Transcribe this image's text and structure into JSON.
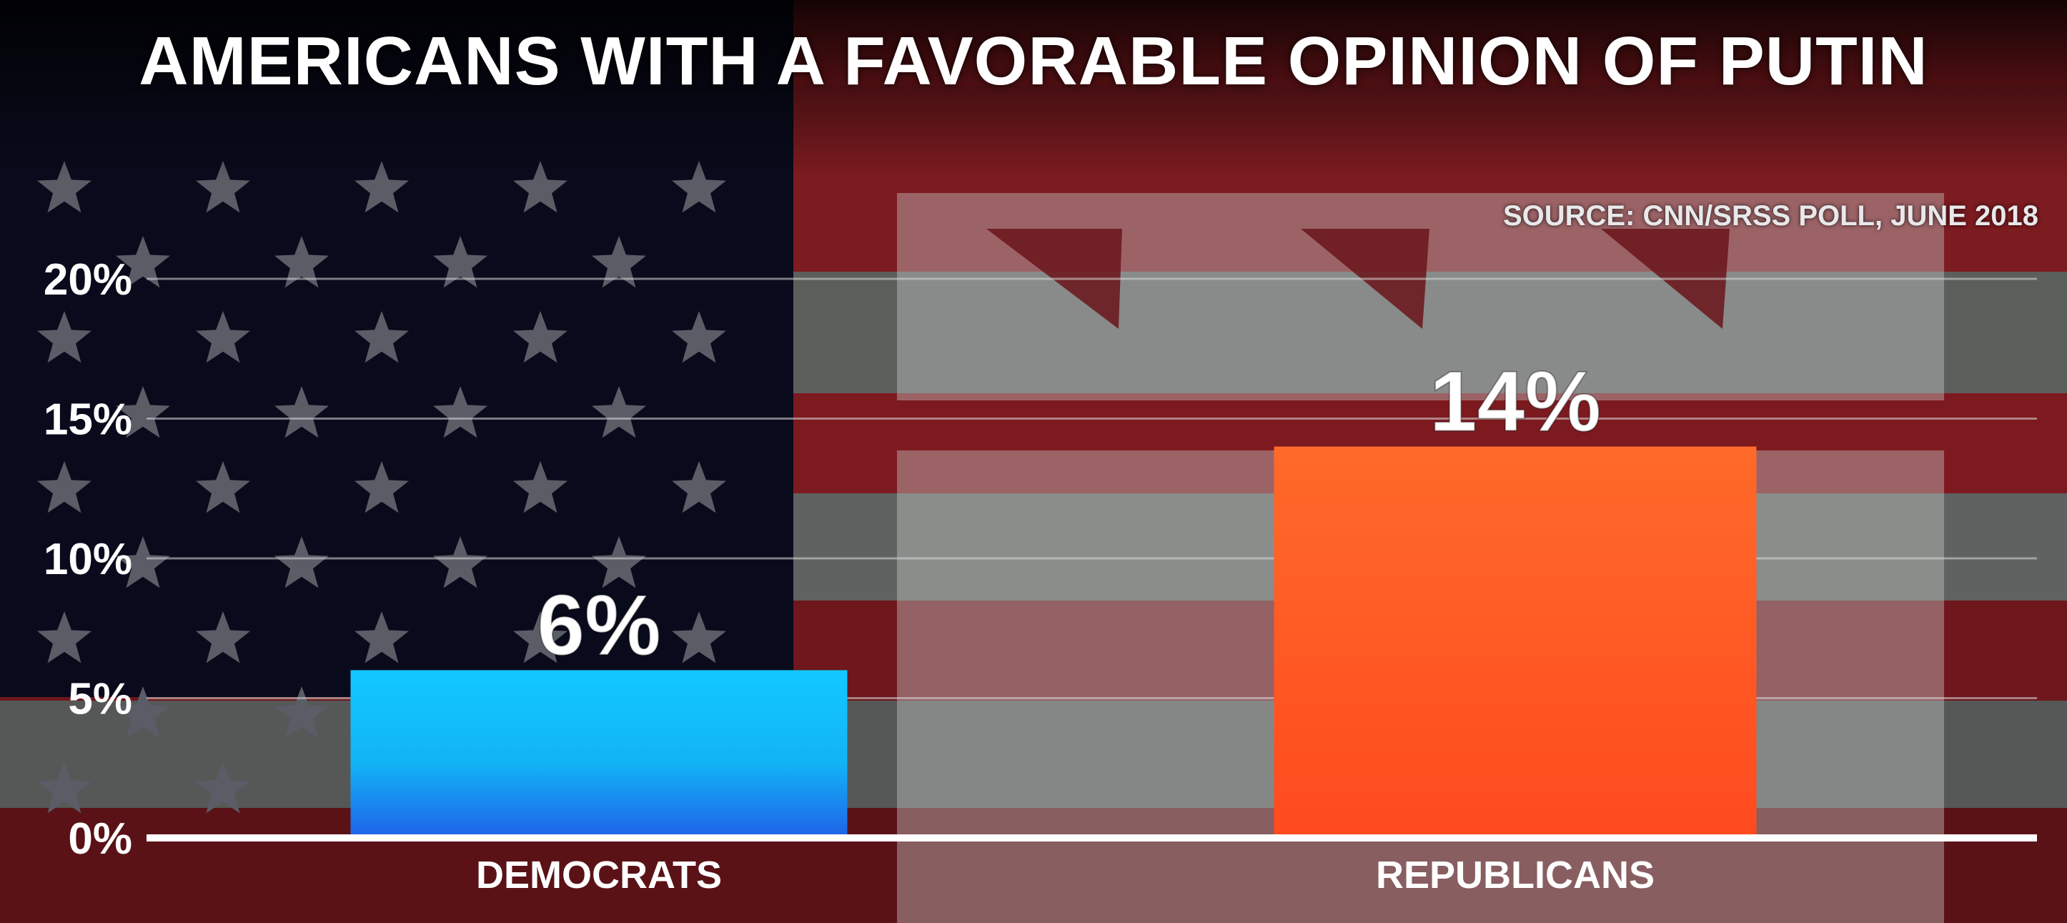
{
  "chart_data": {
    "type": "bar",
    "title": "AMERICANS WITH A FAVORABLE OPINION OF PUTIN",
    "source": "SOURCE: CNN/SRSS POLL, JUNE 2018",
    "categories": [
      "DEMOCRATS",
      "REPUBLICANS"
    ],
    "values": [
      6,
      14
    ],
    "value_labels": [
      "6%",
      "14%"
    ],
    "ylim": [
      0,
      20
    ],
    "yticks": [
      0,
      5,
      10,
      15,
      20
    ],
    "ytick_labels": [
      "0%",
      "5%",
      "10%",
      "15%",
      "20%"
    ],
    "grid": true,
    "colors": {
      "DEMOCRATS": "#1aa7f0",
      "REPUBLICANS": "#ff5a24"
    }
  }
}
